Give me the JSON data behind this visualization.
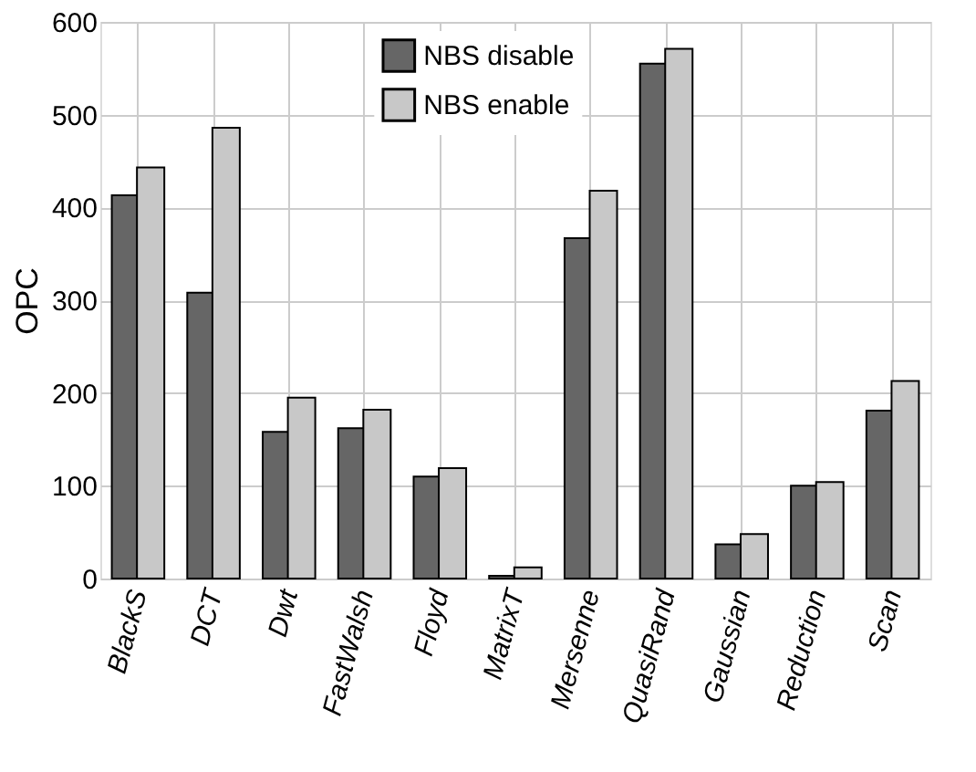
{
  "chart_data": {
    "type": "bar",
    "ylabel": "OPC",
    "categories": [
      "BlackS",
      "DCT",
      "Dwt",
      "FastWalsh",
      "Floyd",
      "MatrixT",
      "Mersenne",
      "QuasiRand",
      "Gaussian",
      "Reduction",
      "Scan"
    ],
    "series": [
      {
        "name": "NBS disable",
        "color": "#666666",
        "values": [
          413,
          308,
          158,
          162,
          110,
          3,
          367,
          555,
          37,
          100,
          181
        ]
      },
      {
        "name": "NBS enable",
        "color": "#c8c8c8",
        "values": [
          443,
          486,
          195,
          182,
          119,
          12,
          418,
          571,
          48,
          104,
          213
        ]
      }
    ],
    "ylim": [
      0,
      600
    ],
    "yticks": [
      0,
      100,
      200,
      300,
      400,
      500,
      600
    ],
    "grid": true,
    "legend": "top"
  }
}
